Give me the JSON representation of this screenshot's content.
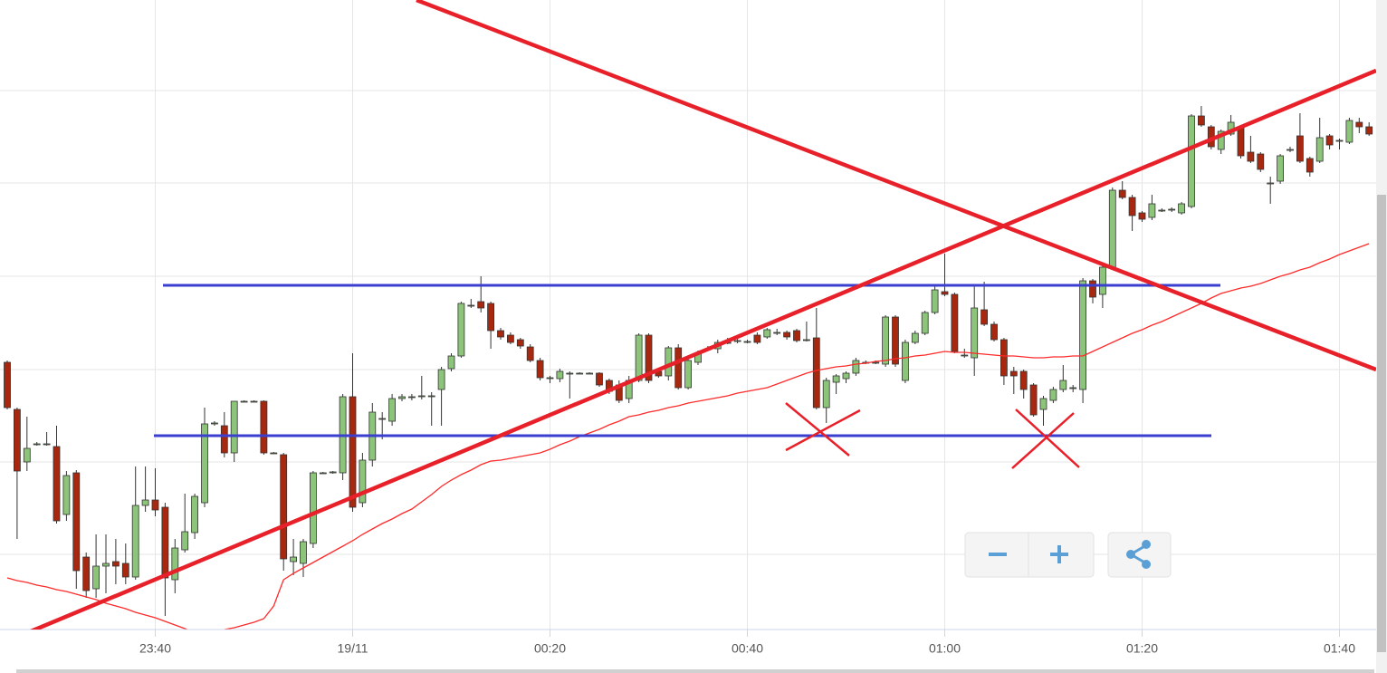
{
  "chart_data": {
    "type": "candlestick",
    "categories": [
      null,
      null,
      null,
      null,
      null,
      null,
      null,
      null,
      null,
      null,
      null,
      null,
      null,
      null,
      null,
      "23:40",
      null,
      null,
      null,
      null,
      null,
      null,
      null,
      null,
      null,
      null,
      null,
      null,
      null,
      null,
      null,
      null,
      null,
      null,
      null,
      "19/11",
      null,
      null,
      null,
      null,
      null,
      null,
      null,
      null,
      null,
      null,
      null,
      null,
      null,
      null,
      null,
      null,
      null,
      null,
      null,
      "00:20",
      null,
      null,
      null,
      null,
      null,
      null,
      null,
      null,
      null,
      null,
      null,
      null,
      null,
      null,
      null,
      null,
      null,
      null,
      null,
      "00:40",
      null,
      null,
      null,
      null,
      null,
      null,
      null,
      null,
      null,
      null,
      null,
      null,
      null,
      null,
      null,
      null,
      null,
      null,
      null,
      "01:00",
      null,
      null,
      null,
      null,
      null,
      null,
      null,
      null,
      null,
      null,
      null,
      null,
      null,
      null,
      null,
      null,
      null,
      null,
      null,
      "01:20",
      null,
      null,
      null,
      null,
      null,
      null,
      null,
      null,
      null,
      null,
      null,
      null,
      null,
      null,
      null,
      null,
      null,
      null,
      null,
      "01:40",
      null,
      null,
      null
    ],
    "open": [
      295,
      243,
      185,
      204,
      205,
      202,
      127,
      173,
      80,
      45,
      70,
      75,
      73,
      58,
      137,
      143,
      135,
      55,
      88,
      107,
      140,
      227,
      225,
      195,
      252,
      252,
      252,
      195,
      193,
      75,
      73,
      95,
      173,
      173,
      173,
      257,
      140,
      187,
      233,
      230,
      255,
      257,
      257,
      257,
      265,
      288,
      302,
      358,
      362,
      360,
      330,
      325,
      320,
      312,
      297,
      278,
      277,
      283,
      283,
      283,
      283,
      275,
      270,
      255,
      275,
      325,
      285,
      280,
      311,
      267,
      295,
      310,
      310,
      317,
      319,
      318,
      325,
      323,
      328,
      328,
      330,
      320,
      322,
      245,
      273,
      277,
      283,
      295,
      295,
      293,
      345,
      275,
      317,
      327,
      350,
      373,
      370,
      303,
      300,
      353,
      337,
      320,
      285,
      285,
      270,
      243,
      253,
      265,
      267,
      265,
      385,
      370,
      400,
      485,
      477,
      460,
      455,
      463,
      463,
      460,
      467,
      567,
      555,
      530,
      547,
      555,
      527,
      525,
      493,
      495,
      530,
      545,
      520,
      517,
      545,
      540,
      538,
      560,
      555
    ],
    "high": [
      297,
      245,
      235,
      207,
      218,
      225,
      175,
      176,
      85,
      105,
      105,
      100,
      95,
      180,
      180,
      178,
      140,
      100,
      150,
      150,
      245,
      230,
      240,
      252,
      253,
      253,
      253,
      196,
      195,
      100,
      100,
      175,
      174,
      175,
      260,
      305,
      195,
      250,
      240,
      260,
      260,
      260,
      280,
      262,
      290,
      305,
      362,
      365,
      390,
      362,
      333,
      328,
      322,
      315,
      300,
      280,
      288,
      285,
      284,
      284,
      284,
      277,
      275,
      280,
      327,
      327,
      288,
      313,
      315,
      300,
      308,
      313,
      320,
      322,
      322,
      320,
      328,
      333,
      332,
      330,
      332,
      340,
      355,
      278,
      282,
      285,
      300,
      297,
      297,
      347,
      347,
      320,
      330,
      352,
      380,
      415,
      372,
      310,
      380,
      384,
      340,
      322,
      290,
      287,
      272,
      258,
      268,
      292,
      270,
      388,
      387,
      403,
      488,
      495,
      480,
      462,
      480,
      465,
      466,
      472,
      569,
      578,
      557,
      552,
      568,
      557,
      545,
      527,
      500,
      525,
      533,
      570,
      522,
      565,
      547,
      542,
      565,
      565,
      560
    ],
    "low": [
      243,
      100,
      175,
      203,
      203,
      117,
      120,
      45,
      35,
      35,
      40,
      50,
      50,
      55,
      130,
      125,
      15,
      40,
      85,
      100,
      135,
      225,
      190,
      185,
      251,
      251,
      193,
      194,
      65,
      60,
      58,
      90,
      172,
      172,
      165,
      130,
      135,
      180,
      210,
      225,
      252,
      253,
      254,
      225,
      225,
      285,
      300,
      355,
      350,
      310,
      320,
      315,
      310,
      295,
      275,
      272,
      273,
      255,
      282,
      282,
      268,
      260,
      250,
      250,
      273,
      272,
      278,
      275,
      265,
      265,
      292,
      308,
      305,
      315,
      316,
      316,
      315,
      321,
      325,
      320,
      317,
      318,
      243,
      228,
      260,
      272,
      280,
      293,
      293,
      290,
      290,
      272,
      315,
      325,
      348,
      368,
      305,
      300,
      280,
      335,
      318,
      270,
      260,
      255,
      235,
      225,
      250,
      262,
      262,
      250,
      360,
      355,
      398,
      475,
      440,
      450,
      452,
      461,
      461,
      458,
      465,
      555,
      530,
      525,
      545,
      520,
      515,
      505,
      470,
      492,
      527,
      515,
      500,
      515,
      530,
      530,
      536,
      548,
      545
    ],
    "close": [
      245,
      175,
      200,
      205,
      205,
      120,
      170,
      65,
      43,
      70,
      73,
      70,
      58,
      137,
      143,
      132,
      57,
      90,
      108,
      147,
      227,
      228,
      195,
      252,
      252,
      252,
      195,
      195,
      78,
      80,
      97,
      173,
      173,
      174,
      257,
      135,
      187,
      240,
      233,
      255,
      257,
      257,
      258,
      258,
      287,
      302,
      360,
      358,
      355,
      330,
      323,
      317,
      313,
      297,
      278,
      278,
      285,
      283,
      283,
      283,
      270,
      263,
      253,
      275,
      325,
      275,
      280,
      311,
      267,
      297,
      305,
      310,
      317,
      317,
      319,
      318,
      317,
      331,
      328,
      323,
      319,
      320,
      245,
      275,
      280,
      283,
      297,
      295,
      295,
      345,
      293,
      317,
      327,
      350,
      375,
      370,
      307,
      303,
      355,
      337,
      320,
      280,
      280,
      265,
      237,
      255,
      265,
      275,
      267,
      385,
      367,
      400,
      485,
      477,
      457,
      453,
      470,
      463,
      464,
      470,
      567,
      557,
      533,
      550,
      560,
      523,
      517,
      508,
      493,
      523,
      530,
      517,
      505,
      543,
      535,
      540,
      562,
      555,
      547
    ],
    "up_color": "#8cc47a",
    "down_color": "#a8280f",
    "ma": {
      "color": "#ff2a2a",
      "values": [
        57,
        54,
        52,
        49,
        47,
        44,
        42,
        39,
        36,
        33,
        29,
        26,
        23,
        19,
        16,
        13,
        9,
        5,
        1,
        -3,
        -2,
        -1,
        0,
        2,
        5,
        8,
        12,
        26,
        55,
        62,
        68,
        74,
        80,
        86,
        92,
        98,
        105,
        111,
        117,
        122,
        128,
        133,
        141,
        149,
        158,
        165,
        171,
        176,
        182,
        186,
        187,
        189,
        191,
        193,
        195,
        199,
        204,
        208,
        213,
        217,
        221,
        226,
        230,
        235,
        237,
        240,
        242,
        245,
        247,
        250,
        252,
        254,
        256,
        258,
        261,
        263,
        265,
        267,
        271,
        275,
        279,
        283,
        286,
        288,
        290,
        291,
        293,
        294,
        296,
        297,
        299,
        300,
        302,
        303,
        305,
        307,
        306,
        306,
        305,
        304,
        303,
        302,
        302,
        301,
        300,
        300,
        301,
        301,
        302,
        302,
        307,
        312,
        317,
        322,
        327,
        331,
        336,
        340,
        345,
        350,
        355,
        360,
        366,
        371,
        374,
        377,
        379,
        382,
        386,
        390,
        393,
        397,
        400,
        405,
        409,
        414,
        418,
        422,
        426
      ]
    },
    "ylim": [
      0,
      695
    ],
    "ygrid": [
      83,
      185,
      287,
      390,
      493,
      595
    ],
    "grid": true
  }
}
